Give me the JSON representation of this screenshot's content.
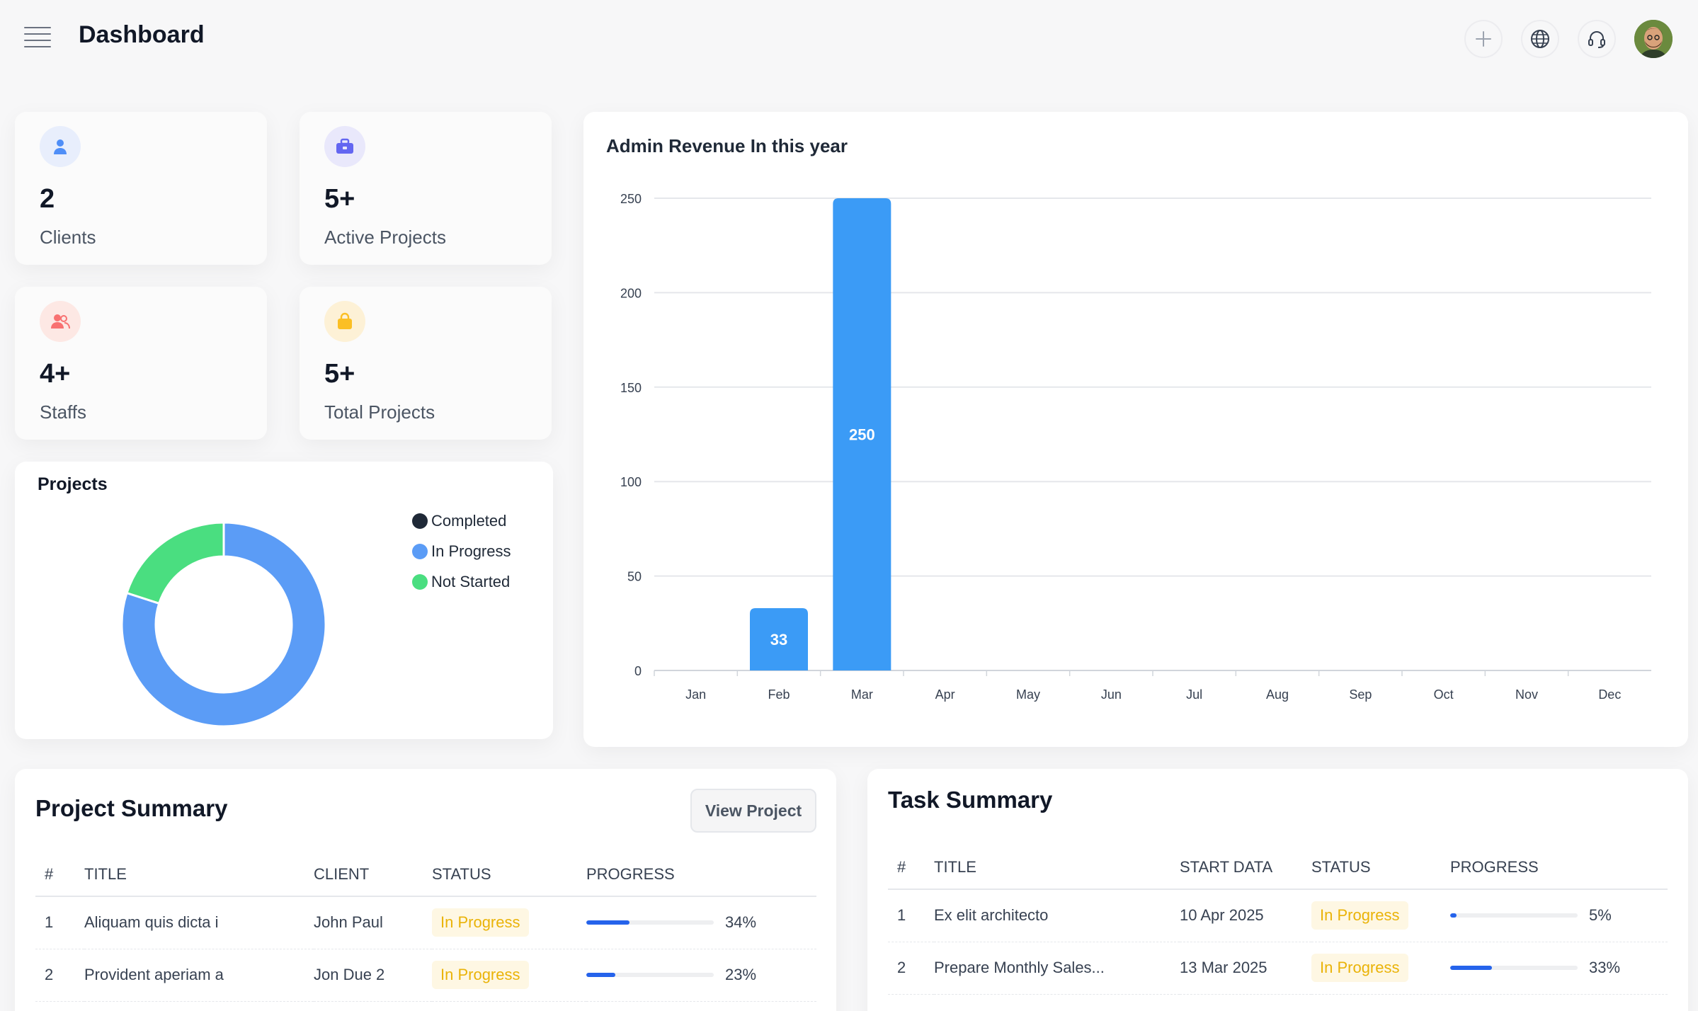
{
  "header": {
    "title": "Dashboard"
  },
  "stats": [
    {
      "value": "2",
      "label": "Clients",
      "icon": "user-icon",
      "color": "#4f8ef7",
      "bg": "#e8eefc"
    },
    {
      "value": "5+",
      "label": "Active Projects",
      "icon": "briefcase-icon",
      "color": "#6366f1",
      "bg": "#e9e8fb"
    },
    {
      "value": "4+",
      "label": "Staffs",
      "icon": "users-icon",
      "color": "#f87171",
      "bg": "#fde8e4"
    },
    {
      "value": "5+",
      "label": "Total Projects",
      "icon": "bag-icon",
      "color": "#fbbf24",
      "bg": "#fdf1d6"
    }
  ],
  "projects": {
    "title": "Projects",
    "legend": [
      {
        "label": "Completed",
        "color": "#1f2937",
        "value": 0
      },
      {
        "label": "In Progress",
        "color": "#5b9cf6",
        "value": 4
      },
      {
        "label": "Not Started",
        "color": "#4ade80",
        "value": 1
      }
    ]
  },
  "chart_data": {
    "type": "bar",
    "title": "Admin Revenue In this year",
    "categories": [
      "Jan",
      "Feb",
      "Mar",
      "Apr",
      "May",
      "Jun",
      "Jul",
      "Aug",
      "Sep",
      "Oct",
      "Nov",
      "Dec"
    ],
    "values": [
      0,
      33,
      250,
      0,
      0,
      0,
      0,
      0,
      0,
      0,
      0,
      0
    ],
    "yticks": [
      0,
      50,
      100,
      150,
      200,
      250
    ],
    "ylim": [
      0,
      250
    ],
    "color": "#3b9bf6",
    "grid": true,
    "xlabel": "",
    "ylabel": ""
  },
  "project_summary": {
    "title": "Project Summary",
    "button": "View Project",
    "columns": [
      "#",
      "TITLE",
      "CLIENT",
      "STATUS",
      "PROGRESS"
    ],
    "rows": [
      {
        "num": "1",
        "title": "Aliquam quis dicta i",
        "client": "John Paul",
        "status": "In Progress",
        "progress": 34,
        "progress_label": "34%"
      },
      {
        "num": "2",
        "title": "Provident aperiam a",
        "client": "Jon Due 2",
        "status": "In Progress",
        "progress": 23,
        "progress_label": "23%"
      }
    ]
  },
  "task_summary": {
    "title": "Task Summary",
    "columns": [
      "#",
      "TITLE",
      "START DATA",
      "STATUS",
      "PROGRESS"
    ],
    "rows": [
      {
        "num": "1",
        "title": "Ex elit architecto",
        "start": "10 Apr 2025",
        "status": "In Progress",
        "progress": 5,
        "progress_label": "5%"
      },
      {
        "num": "2",
        "title": "Prepare Monthly Sales...",
        "start": "13 Mar 2025",
        "status": "In Progress",
        "progress": 33,
        "progress_label": "33%"
      }
    ]
  }
}
